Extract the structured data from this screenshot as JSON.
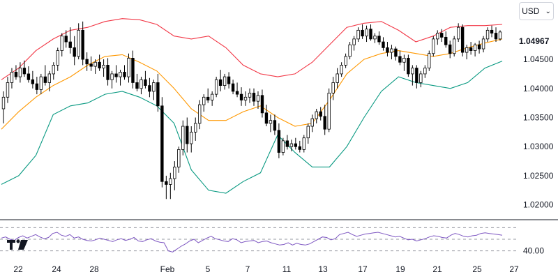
{
  "currency_selector": {
    "label": "USD",
    "chevron_icon": "chevron-down-icon"
  },
  "last_price": "1.04967",
  "rsi_level_label": "40.00",
  "logo_icon": "tradingview-logo-icon",
  "colors": {
    "bull": "#ffffff",
    "bear": "#000000",
    "upper": "#f23645",
    "middle": "#ff9800",
    "lower": "#089981",
    "rsi": "#7e57c2",
    "grid": "#9598a1"
  },
  "chart_data": [
    {
      "type": "candlestick",
      "title": "",
      "price_axis": {
        "ticks": [
          "1.04500",
          "1.04000",
          "1.03500",
          "1.03000",
          "1.02500",
          "1.02000"
        ],
        "range": [
          1.0178,
          1.0528
        ]
      },
      "time_axis": {
        "ticks": [
          "22",
          "24",
          "28",
          "Feb",
          "5",
          "7",
          "11",
          "13",
          "17",
          "19",
          "21",
          "25",
          "27"
        ]
      },
      "series": [
        {
          "name": "",
          "kind": "bollinger-upper"
        },
        {
          "name": "",
          "kind": "bollinger-middle"
        },
        {
          "name": "",
          "kind": "bollinger-lower"
        }
      ],
      "bollinger": {
        "upper": [
          1.0415,
          1.0435,
          1.0465,
          1.0485,
          1.05,
          1.0505,
          1.0515,
          1.052,
          1.0518,
          1.051,
          1.049,
          1.0485,
          1.049,
          1.047,
          1.044,
          1.0425,
          1.042,
          1.0425,
          1.0445,
          1.0475,
          1.0505,
          1.0512,
          1.0515,
          1.05,
          1.048,
          1.049,
          1.0505,
          1.0508,
          1.0508,
          1.051
        ],
        "middle": [
          1.033,
          1.036,
          1.0385,
          1.0405,
          1.042,
          1.044,
          1.0455,
          1.0458,
          1.0445,
          1.043,
          1.04,
          1.0365,
          1.0345,
          1.0345,
          1.036,
          1.037,
          1.035,
          1.0335,
          1.034,
          1.038,
          1.0425,
          1.045,
          1.046,
          1.0465,
          1.046,
          1.0455,
          1.046,
          1.047,
          1.0478,
          1.0485
        ],
        "lower": [
          1.0235,
          1.025,
          1.0285,
          1.0355,
          1.037,
          1.0375,
          1.039,
          1.0395,
          1.0385,
          1.037,
          1.034,
          1.026,
          1.0225,
          1.022,
          1.024,
          1.0255,
          1.032,
          1.029,
          1.0265,
          1.0265,
          1.03,
          1.035,
          1.0395,
          1.042,
          1.041,
          1.0405,
          1.04,
          1.041,
          1.0435,
          1.0447
        ]
      },
      "candles": [
        {
          "o": 1.0365,
          "h": 1.0395,
          "l": 1.034,
          "c": 1.0385
        },
        {
          "o": 1.0385,
          "h": 1.042,
          "l": 1.0375,
          "c": 1.041
        },
        {
          "o": 1.041,
          "h": 1.0435,
          "l": 1.04,
          "c": 1.0428
        },
        {
          "o": 1.0428,
          "h": 1.044,
          "l": 1.0415,
          "c": 1.042
        },
        {
          "o": 1.042,
          "h": 1.0445,
          "l": 1.041,
          "c": 1.0435
        },
        {
          "o": 1.0435,
          "h": 1.0448,
          "l": 1.042,
          "c": 1.0425
        },
        {
          "o": 1.0425,
          "h": 1.0438,
          "l": 1.041,
          "c": 1.0415
        },
        {
          "o": 1.0415,
          "h": 1.043,
          "l": 1.04,
          "c": 1.0408
        },
        {
          "o": 1.0408,
          "h": 1.042,
          "l": 1.039,
          "c": 1.0398
        },
        {
          "o": 1.0398,
          "h": 1.0425,
          "l": 1.039,
          "c": 1.042
        },
        {
          "o": 1.042,
          "h": 1.044,
          "l": 1.0405,
          "c": 1.041
        },
        {
          "o": 1.041,
          "h": 1.043,
          "l": 1.0395,
          "c": 1.0425
        },
        {
          "o": 1.0425,
          "h": 1.0445,
          "l": 1.0415,
          "c": 1.044
        },
        {
          "o": 1.044,
          "h": 1.047,
          "l": 1.043,
          "c": 1.0465
        },
        {
          "o": 1.0465,
          "h": 1.0495,
          "l": 1.0455,
          "c": 1.049
        },
        {
          "o": 1.049,
          "h": 1.05,
          "l": 1.047,
          "c": 1.048
        },
        {
          "o": 1.048,
          "h": 1.0505,
          "l": 1.046,
          "c": 1.047
        },
        {
          "o": 1.047,
          "h": 1.049,
          "l": 1.044,
          "c": 1.0455
        },
        {
          "o": 1.0455,
          "h": 1.0512,
          "l": 1.045,
          "c": 1.05
        },
        {
          "o": 1.05,
          "h": 1.0515,
          "l": 1.044,
          "c": 1.045
        },
        {
          "o": 1.045,
          "h": 1.0462,
          "l": 1.043,
          "c": 1.0442
        },
        {
          "o": 1.0442,
          "h": 1.0455,
          "l": 1.043,
          "c": 1.0438
        },
        {
          "o": 1.0438,
          "h": 1.045,
          "l": 1.0425,
          "c": 1.0445
        },
        {
          "o": 1.0445,
          "h": 1.0458,
          "l": 1.043,
          "c": 1.0435
        },
        {
          "o": 1.0435,
          "h": 1.045,
          "l": 1.042,
          "c": 1.044
        },
        {
          "o": 1.044,
          "h": 1.0452,
          "l": 1.0405,
          "c": 1.0415
        },
        {
          "o": 1.0415,
          "h": 1.043,
          "l": 1.04,
          "c": 1.0425
        },
        {
          "o": 1.0425,
          "h": 1.044,
          "l": 1.041,
          "c": 1.042
        },
        {
          "o": 1.042,
          "h": 1.0432,
          "l": 1.0405,
          "c": 1.0428
        },
        {
          "o": 1.0428,
          "h": 1.044,
          "l": 1.0415,
          "c": 1.042
        },
        {
          "o": 1.042,
          "h": 1.046,
          "l": 1.041,
          "c": 1.0452
        },
        {
          "o": 1.0452,
          "h": 1.0465,
          "l": 1.04,
          "c": 1.041
        },
        {
          "o": 1.041,
          "h": 1.0425,
          "l": 1.0395,
          "c": 1.04
        },
        {
          "o": 1.04,
          "h": 1.042,
          "l": 1.039,
          "c": 1.0415
        },
        {
          "o": 1.0415,
          "h": 1.043,
          "l": 1.04,
          "c": 1.0405
        },
        {
          "o": 1.0405,
          "h": 1.0418,
          "l": 1.0385,
          "c": 1.0395
        },
        {
          "o": 1.0395,
          "h": 1.0415,
          "l": 1.038,
          "c": 1.041
        },
        {
          "o": 1.041,
          "h": 1.0425,
          "l": 1.036,
          "c": 1.037
        },
        {
          "o": 1.037,
          "h": 1.0385,
          "l": 1.023,
          "c": 1.024
        },
        {
          "o": 1.024,
          "h": 1.025,
          "l": 1.021,
          "c": 1.0235
        },
        {
          "o": 1.0235,
          "h": 1.0255,
          "l": 1.021,
          "c": 1.0245
        },
        {
          "o": 1.0245,
          "h": 1.0275,
          "l": 1.0225,
          "c": 1.0265
        },
        {
          "o": 1.0265,
          "h": 1.03,
          "l": 1.0255,
          "c": 1.0295
        },
        {
          "o": 1.0295,
          "h": 1.0345,
          "l": 1.0285,
          "c": 1.0335
        },
        {
          "o": 1.0335,
          "h": 1.035,
          "l": 1.029,
          "c": 1.0305
        },
        {
          "o": 1.0305,
          "h": 1.0335,
          "l": 1.029,
          "c": 1.0325
        },
        {
          "o": 1.0325,
          "h": 1.035,
          "l": 1.031,
          "c": 1.034
        },
        {
          "o": 1.034,
          "h": 1.038,
          "l": 1.033,
          "c": 1.0372
        },
        {
          "o": 1.0372,
          "h": 1.039,
          "l": 1.036,
          "c": 1.0385
        },
        {
          "o": 1.0385,
          "h": 1.04,
          "l": 1.0375,
          "c": 1.038
        },
        {
          "o": 1.038,
          "h": 1.0395,
          "l": 1.037,
          "c": 1.039
        },
        {
          "o": 1.039,
          "h": 1.042,
          "l": 1.0385,
          "c": 1.0415
        },
        {
          "o": 1.0415,
          "h": 1.0432,
          "l": 1.0395,
          "c": 1.0405
        },
        {
          "o": 1.0405,
          "h": 1.0425,
          "l": 1.0398,
          "c": 1.042
        },
        {
          "o": 1.042,
          "h": 1.0428,
          "l": 1.04,
          "c": 1.0408
        },
        {
          "o": 1.0408,
          "h": 1.0415,
          "l": 1.039,
          "c": 1.0395
        },
        {
          "o": 1.0395,
          "h": 1.041,
          "l": 1.0385,
          "c": 1.039
        },
        {
          "o": 1.039,
          "h": 1.0402,
          "l": 1.037,
          "c": 1.038
        },
        {
          "o": 1.038,
          "h": 1.0395,
          "l": 1.037,
          "c": 1.0385
        },
        {
          "o": 1.0385,
          "h": 1.04,
          "l": 1.0375,
          "c": 1.0392
        },
        {
          "o": 1.0392,
          "h": 1.04,
          "l": 1.037,
          "c": 1.0378
        },
        {
          "o": 1.0378,
          "h": 1.0395,
          "l": 1.0365,
          "c": 1.0388
        },
        {
          "o": 1.0388,
          "h": 1.0398,
          "l": 1.035,
          "c": 1.0358
        },
        {
          "o": 1.0358,
          "h": 1.0372,
          "l": 1.0335,
          "c": 1.034
        },
        {
          "o": 1.034,
          "h": 1.0355,
          "l": 1.0325,
          "c": 1.0345
        },
        {
          "o": 1.0345,
          "h": 1.0355,
          "l": 1.032,
          "c": 1.0328
        },
        {
          "o": 1.0328,
          "h": 1.034,
          "l": 1.028,
          "c": 1.029
        },
        {
          "o": 1.029,
          "h": 1.0315,
          "l": 1.0285,
          "c": 1.031
        },
        {
          "o": 1.031,
          "h": 1.032,
          "l": 1.0295,
          "c": 1.03
        },
        {
          "o": 1.03,
          "h": 1.0312,
          "l": 1.0292,
          "c": 1.0305
        },
        {
          "o": 1.0305,
          "h": 1.0315,
          "l": 1.0295,
          "c": 1.03
        },
        {
          "o": 1.03,
          "h": 1.031,
          "l": 1.029,
          "c": 1.0295
        },
        {
          "o": 1.0295,
          "h": 1.032,
          "l": 1.029,
          "c": 1.0315
        },
        {
          "o": 1.0315,
          "h": 1.034,
          "l": 1.0305,
          "c": 1.0335
        },
        {
          "o": 1.0335,
          "h": 1.0355,
          "l": 1.0325,
          "c": 1.0348
        },
        {
          "o": 1.0348,
          "h": 1.0365,
          "l": 1.034,
          "c": 1.036
        },
        {
          "o": 1.036,
          "h": 1.0368,
          "l": 1.0345,
          "c": 1.0352
        },
        {
          "o": 1.0352,
          "h": 1.0372,
          "l": 1.032,
          "c": 1.033
        },
        {
          "o": 1.033,
          "h": 1.04,
          "l": 1.0325,
          "c": 1.0392
        },
        {
          "o": 1.0392,
          "h": 1.042,
          "l": 1.038,
          "c": 1.041
        },
        {
          "o": 1.041,
          "h": 1.0435,
          "l": 1.04,
          "c": 1.0425
        },
        {
          "o": 1.0425,
          "h": 1.0445,
          "l": 1.042,
          "c": 1.044
        },
        {
          "o": 1.044,
          "h": 1.046,
          "l": 1.0435,
          "c": 1.0455
        },
        {
          "o": 1.0455,
          "h": 1.048,
          "l": 1.045,
          "c": 1.0475
        },
        {
          "o": 1.0475,
          "h": 1.049,
          "l": 1.0465,
          "c": 1.0485
        },
        {
          "o": 1.0485,
          "h": 1.0505,
          "l": 1.048,
          "c": 1.05
        },
        {
          "o": 1.05,
          "h": 1.051,
          "l": 1.0485,
          "c": 1.049
        },
        {
          "o": 1.049,
          "h": 1.0508,
          "l": 1.048,
          "c": 1.0502
        },
        {
          "o": 1.0502,
          "h": 1.051,
          "l": 1.0482,
          "c": 1.0485
        },
        {
          "o": 1.0485,
          "h": 1.0495,
          "l": 1.0478,
          "c": 1.049
        },
        {
          "o": 1.049,
          "h": 1.0498,
          "l": 1.0475,
          "c": 1.048
        },
        {
          "o": 1.048,
          "h": 1.0488,
          "l": 1.0465,
          "c": 1.047
        },
        {
          "o": 1.047,
          "h": 1.048,
          "l": 1.0455,
          "c": 1.0462
        },
        {
          "o": 1.0462,
          "h": 1.0475,
          "l": 1.045,
          "c": 1.0468
        },
        {
          "o": 1.0468,
          "h": 1.0472,
          "l": 1.0448,
          "c": 1.0455
        },
        {
          "o": 1.0455,
          "h": 1.0465,
          "l": 1.044,
          "c": 1.0445
        },
        {
          "o": 1.0445,
          "h": 1.0458,
          "l": 1.043,
          "c": 1.0452
        },
        {
          "o": 1.0452,
          "h": 1.0458,
          "l": 1.042,
          "c": 1.0425
        },
        {
          "o": 1.0425,
          "h": 1.044,
          "l": 1.0405,
          "c": 1.0435
        },
        {
          "o": 1.0435,
          "h": 1.044,
          "l": 1.04,
          "c": 1.041
        },
        {
          "o": 1.041,
          "h": 1.043,
          "l": 1.0402,
          "c": 1.0425
        },
        {
          "o": 1.0425,
          "h": 1.044,
          "l": 1.0418,
          "c": 1.0435
        },
        {
          "o": 1.0435,
          "h": 1.0465,
          "l": 1.043,
          "c": 1.046
        },
        {
          "o": 1.046,
          "h": 1.049,
          "l": 1.0455,
          "c": 1.0485
        },
        {
          "o": 1.0485,
          "h": 1.05,
          "l": 1.0475,
          "c": 1.0495
        },
        {
          "o": 1.0495,
          "h": 1.0502,
          "l": 1.048,
          "c": 1.0488
        },
        {
          "o": 1.0488,
          "h": 1.0498,
          "l": 1.047,
          "c": 1.0475
        },
        {
          "o": 1.0475,
          "h": 1.0482,
          "l": 1.0452,
          "c": 1.046
        },
        {
          "o": 1.046,
          "h": 1.049,
          "l": 1.0455,
          "c": 1.0485
        },
        {
          "o": 1.0485,
          "h": 1.0512,
          "l": 1.048,
          "c": 1.0505
        },
        {
          "o": 1.0505,
          "h": 1.051,
          "l": 1.0455,
          "c": 1.0462
        },
        {
          "o": 1.0462,
          "h": 1.0475,
          "l": 1.045,
          "c": 1.047
        },
        {
          "o": 1.047,
          "h": 1.048,
          "l": 1.0458,
          "c": 1.0465
        },
        {
          "o": 1.0465,
          "h": 1.0478,
          "l": 1.0455,
          "c": 1.0475
        },
        {
          "o": 1.0475,
          "h": 1.0482,
          "l": 1.046,
          "c": 1.0468
        },
        {
          "o": 1.0468,
          "h": 1.049,
          "l": 1.0462,
          "c": 1.0485
        },
        {
          "o": 1.0485,
          "h": 1.0505,
          "l": 1.048,
          "c": 1.05
        },
        {
          "o": 1.05,
          "h": 1.0508,
          "l": 1.0488,
          "c": 1.0495
        },
        {
          "o": 1.0495,
          "h": 1.0505,
          "l": 1.048,
          "c": 1.0485
        },
        {
          "o": 1.0485,
          "h": 1.05,
          "l": 1.0482,
          "c": 1.0497
        }
      ]
    },
    {
      "type": "line",
      "title": "",
      "levels": [
        "40.00"
      ],
      "range": [
        20,
        80
      ],
      "series": [
        {
          "name": "",
          "values": [
            52,
            54,
            50,
            48,
            53,
            56,
            52,
            55,
            58,
            54,
            51,
            53,
            60,
            62,
            57,
            55,
            58,
            52,
            54,
            50,
            48,
            47,
            49,
            52,
            50,
            48,
            46,
            49,
            51,
            48,
            50,
            53,
            47,
            46,
            49,
            51,
            47,
            45,
            44,
            30,
            28,
            33,
            38,
            42,
            47,
            50,
            44,
            48,
            52,
            55,
            51,
            49,
            47,
            46,
            51,
            49,
            44,
            46,
            47,
            48,
            44,
            46,
            47,
            44,
            42,
            40,
            41,
            44,
            40,
            43,
            41,
            40,
            42,
            46,
            50,
            54,
            53,
            49,
            51,
            58,
            60,
            62,
            58,
            55,
            57,
            59,
            60,
            61,
            62,
            60,
            58,
            56,
            54,
            55,
            52,
            49,
            50,
            47,
            49,
            51,
            54,
            56,
            55,
            53,
            52,
            57,
            60,
            58,
            55,
            54,
            56,
            57,
            60,
            61,
            60,
            59,
            58,
            57
          ]
        }
      ]
    }
  ]
}
